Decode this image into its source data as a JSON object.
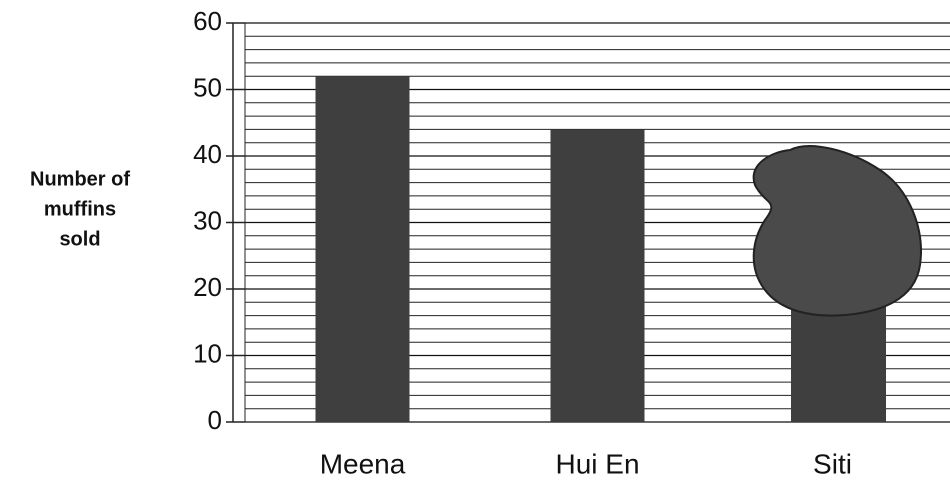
{
  "chart_data": {
    "type": "bar",
    "ylabel_lines": [
      "Number of",
      "muffins",
      "sold"
    ],
    "categories": [
      "Meena",
      "Hui En",
      "Siti"
    ],
    "values": [
      52,
      44,
      null
    ],
    "color": "#3f3f3f",
    "ylim": [
      0,
      60
    ],
    "yticks": [
      0,
      10,
      20,
      30,
      40,
      50,
      60
    ],
    "grid": true,
    "minor_grid_step": 2
  }
}
